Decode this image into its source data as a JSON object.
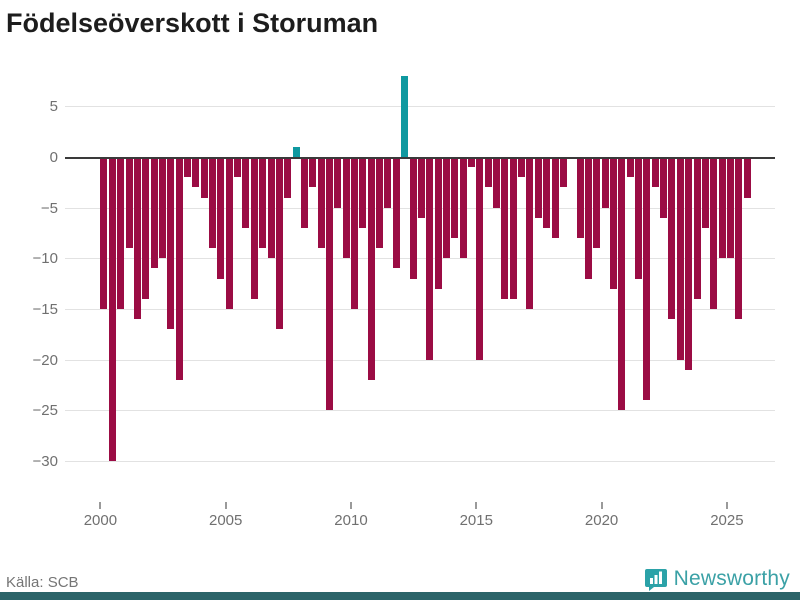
{
  "title": "Födelseöverskott i Storuman",
  "source": "Källa: SCB",
  "branding": {
    "name": "Newsworthy",
    "icon": "newsworthy-logo-icon"
  },
  "colors": {
    "negative_bar": "#9b0c44",
    "positive_bar": "#0f99a0",
    "zero_line": "#3a3a3a",
    "grid": "#e2e2e2",
    "axis_text": "#707070",
    "brand_teal": "#3ba1a6",
    "footer_band": "#2c6469",
    "title_text": "#1d1d1d"
  },
  "chart_data": {
    "type": "bar",
    "title": "Födelseöverskott i Storuman",
    "xlabel": "",
    "ylabel": "",
    "period": "tertial (3 values per year)",
    "start_year": 2000,
    "x_ticks": [
      2000,
      2005,
      2010,
      2015,
      2020,
      2025
    ],
    "y_ticks": [
      5,
      0,
      -5,
      -10,
      -15,
      -20,
      -25,
      -30
    ],
    "ylim": [
      -30,
      8
    ],
    "grid": "horizontal",
    "legend": "none",
    "series": [
      {
        "name": "Födelseöverskott",
        "values_by_year": {
          "2000": [
            -15,
            -30,
            -15
          ],
          "2001": [
            -9,
            -16,
            -14
          ],
          "2002": [
            -11,
            -10,
            -17
          ],
          "2003": [
            -22,
            -2,
            -3
          ],
          "2004": [
            -4,
            -9,
            -12
          ],
          "2005": [
            -15,
            -2,
            -7
          ],
          "2006": [
            -14,
            -9,
            -10
          ],
          "2007": [
            -17,
            -4,
            1
          ],
          "2008": [
            -7,
            -3,
            -9
          ],
          "2009": [
            -25,
            -5,
            -10
          ],
          "2010": [
            -15,
            -7,
            -22
          ],
          "2011": [
            -9,
            -5,
            -11
          ],
          "2012": [
            8,
            -12,
            -6
          ],
          "2013": [
            -20,
            -13,
            -10
          ],
          "2014": [
            -8,
            -10,
            -1
          ],
          "2015": [
            -20,
            -3,
            -5
          ],
          "2016": [
            -14,
            -14,
            -2
          ],
          "2017": [
            -15,
            -6,
            -7
          ],
          "2018": [
            -8,
            -3,
            0
          ],
          "2019": [
            -8,
            -12,
            -9
          ],
          "2020": [
            -5,
            -13,
            -25
          ],
          "2021": [
            -2,
            -12,
            -24
          ],
          "2022": [
            -3,
            -6,
            -16
          ],
          "2023": [
            -20,
            -21,
            -14
          ],
          "2024": [
            -7,
            -15,
            -10
          ],
          "2025": [
            -10,
            -16,
            -4
          ]
        }
      }
    ]
  }
}
